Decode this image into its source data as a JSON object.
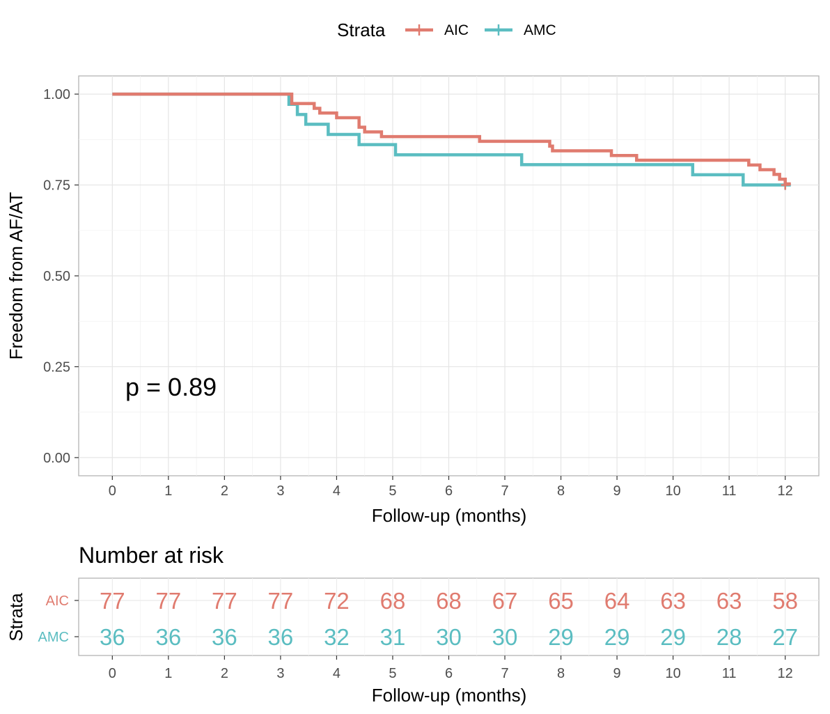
{
  "legend": {
    "title": "Strata",
    "placement": "top-center",
    "items": [
      {
        "label": "AIC",
        "color": "#E07B6F"
      },
      {
        "label": "AMC",
        "color": "#5BBDC1"
      }
    ]
  },
  "annotation": {
    "pvalue": "p = 0.89"
  },
  "chart_data": [
    {
      "type": "line",
      "subtype": "kaplan-meier-step",
      "xlabel": "Follow-up (months)",
      "ylabel": "Freedom from AF/AT",
      "xlim": [
        -0.6,
        12.6
      ],
      "ylim": [
        -0.05,
        1.05
      ],
      "x_ticks": [
        0,
        1,
        2,
        3,
        4,
        5,
        6,
        7,
        8,
        9,
        10,
        11,
        12
      ],
      "y_ticks": [
        0.0,
        0.25,
        0.5,
        0.75,
        1.0
      ],
      "y_tick_labels": [
        "0.00",
        "0.25",
        "0.50",
        "0.75",
        "1.00"
      ],
      "grid": true,
      "series": [
        {
          "name": "AIC",
          "color": "#E07B6F",
          "end_x": 12.1,
          "censor": [
            [
              12.0,
              0.75
            ]
          ],
          "steps": [
            [
              0,
              1.0
            ],
            [
              3.2,
              0.974
            ],
            [
              3.6,
              0.961
            ],
            [
              3.7,
              0.948
            ],
            [
              4.0,
              0.935
            ],
            [
              4.4,
              0.909
            ],
            [
              4.5,
              0.896
            ],
            [
              4.8,
              0.883
            ],
            [
              6.55,
              0.87
            ],
            [
              7.8,
              0.857
            ],
            [
              7.85,
              0.844
            ],
            [
              8.9,
              0.831
            ],
            [
              9.35,
              0.818
            ],
            [
              11.35,
              0.805
            ],
            [
              11.55,
              0.792
            ],
            [
              11.8,
              0.779
            ],
            [
              11.9,
              0.766
            ],
            [
              12.0,
              0.753
            ]
          ]
        },
        {
          "name": "AMC",
          "color": "#5BBDC1",
          "end_x": 12.1,
          "censor": [
            [
              12.0,
              0.75
            ]
          ],
          "steps": [
            [
              0,
              1.0
            ],
            [
              3.15,
              0.972
            ],
            [
              3.3,
              0.944
            ],
            [
              3.45,
              0.917
            ],
            [
              3.85,
              0.889
            ],
            [
              4.4,
              0.861
            ],
            [
              5.05,
              0.833
            ],
            [
              7.3,
              0.806
            ],
            [
              10.35,
              0.778
            ],
            [
              11.25,
              0.75
            ]
          ]
        }
      ]
    },
    {
      "type": "table",
      "title": "Number at risk",
      "ylabel": "Strata",
      "xlabel": "Follow-up (months)",
      "x_ticks": [
        0,
        1,
        2,
        3,
        4,
        5,
        6,
        7,
        8,
        9,
        10,
        11,
        12
      ],
      "rows": [
        {
          "name": "AIC",
          "color": "#E07B6F",
          "values": [
            77,
            77,
            77,
            77,
            72,
            68,
            68,
            67,
            65,
            64,
            63,
            63,
            58
          ]
        },
        {
          "name": "AMC",
          "color": "#5BBDC1",
          "values": [
            36,
            36,
            36,
            36,
            32,
            31,
            30,
            30,
            29,
            29,
            29,
            28,
            27
          ]
        }
      ]
    }
  ]
}
